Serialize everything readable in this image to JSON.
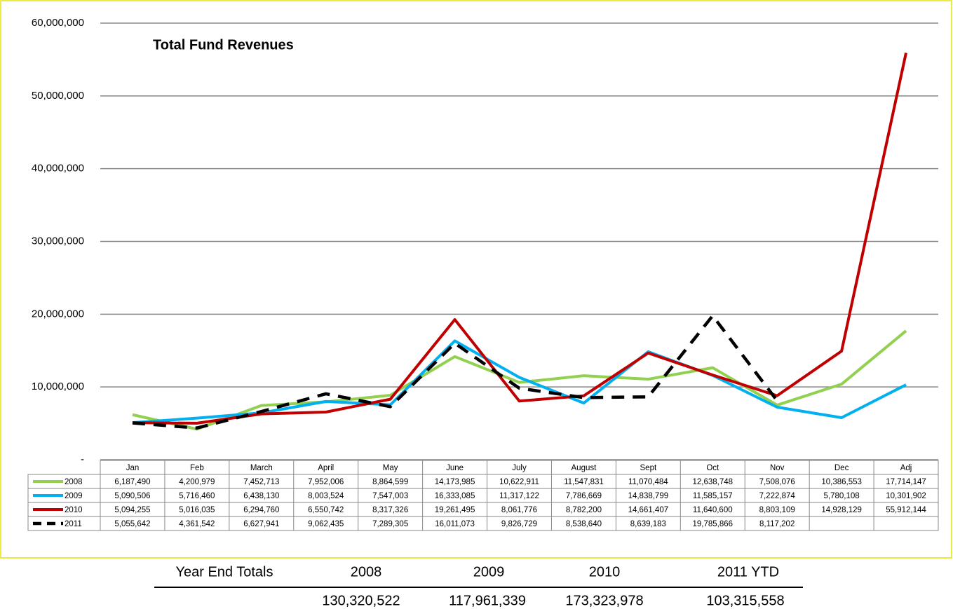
{
  "chart_data": {
    "type": "line",
    "title": "Total Fund Revenues",
    "categories": [
      "Jan",
      "Feb",
      "March",
      "April",
      "May",
      "June",
      "July",
      "August",
      "Sept",
      "Oct",
      "Nov",
      "Dec",
      "Adj"
    ],
    "ylim": [
      0,
      60000000
    ],
    "yticks": [
      {
        "value": 0,
        "label": "-"
      },
      {
        "value": 10000000,
        "label": "10,000,000"
      },
      {
        "value": 20000000,
        "label": "20,000,000"
      },
      {
        "value": 30000000,
        "label": "30,000,000"
      },
      {
        "value": 40000000,
        "label": "40,000,000"
      },
      {
        "value": 50000000,
        "label": "50,000,000"
      },
      {
        "value": 60000000,
        "label": "60,000,000"
      }
    ],
    "grid": true,
    "series": [
      {
        "name": "2008",
        "color": "#92d050",
        "dashed": false,
        "values": [
          6187490,
          4200979,
          7452713,
          7952006,
          8864599,
          14173985,
          10622911,
          11547831,
          11070484,
          12638748,
          7508076,
          10386553,
          17714147
        ],
        "value_labels": [
          "6,187,490",
          "4,200,979",
          "7,452,713",
          "7,952,006",
          "8,864,599",
          "14,173,985",
          "10,622,911",
          "11,547,831",
          "11,070,484",
          "12,638,748",
          "7,508,076",
          "10,386,553",
          "17,714,147"
        ]
      },
      {
        "name": "2009",
        "color": "#00b0f0",
        "dashed": false,
        "values": [
          5090506,
          5716460,
          6438130,
          8003524,
          7547003,
          16333085,
          11317122,
          7786669,
          14838799,
          11585157,
          7222874,
          5780108,
          10301902
        ],
        "value_labels": [
          "5,090,506",
          "5,716,460",
          "6,438,130",
          "8,003,524",
          "7,547,003",
          "16,333,085",
          "11,317,122",
          "7,786,669",
          "14,838,799",
          "11,585,157",
          "7,222,874",
          "5,780,108",
          "10,301,902"
        ]
      },
      {
        "name": "2010",
        "color": "#c00000",
        "dashed": false,
        "values": [
          5094255,
          5016035,
          6294760,
          6550742,
          8317326,
          19261495,
          8061776,
          8782200,
          14661407,
          11640600,
          8803109,
          14928129,
          55912144
        ],
        "value_labels": [
          "5,094,255",
          "5,016,035",
          "6,294,760",
          "6,550,742",
          "8,317,326",
          "19,261,495",
          "8,061,776",
          "8,782,200",
          "14,661,407",
          "11,640,600",
          "8,803,109",
          "14,928,129",
          "55,912,144"
        ]
      },
      {
        "name": "2011",
        "color": "#000000",
        "dashed": true,
        "values": [
          5055642,
          4361542,
          6627941,
          9062435,
          7289305,
          16011073,
          9826729,
          8538640,
          8639183,
          19785866,
          8117202,
          null,
          null
        ],
        "value_labels": [
          "5,055,642",
          "4,361,542",
          "6,627,941",
          "9,062,435",
          "7,289,305",
          "16,011,073",
          "9,826,729",
          "8,538,640",
          "8,639,183",
          "19,785,866",
          "8,117,202",
          null,
          null
        ]
      }
    ]
  },
  "year_end_totals": {
    "label": "Year End Totals",
    "columns": [
      "2008",
      "2009",
      "2010",
      "2011 YTD"
    ],
    "totals": [
      "130,320,522",
      "117,961,339",
      "173,323,978",
      "103,315,558"
    ]
  }
}
